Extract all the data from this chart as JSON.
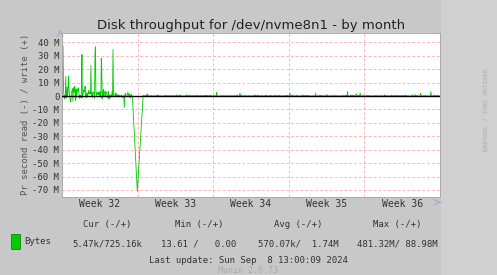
{
  "title": "Disk throughput for /dev/nvme8n1 - by month",
  "ylabel": "Pr second read (-) / write (+)",
  "bg_color": "#c8c8c8",
  "plot_bg_color": "#ffffff",
  "grid_color": "#ff9999",
  "line_color": "#00cc00",
  "zero_line_color": "#000000",
  "border_color": "#aaaaaa",
  "right_panel_color": "#d8d8d8",
  "ylim": [
    -75000000,
    47000000
  ],
  "yticks": [
    -70000000,
    -60000000,
    -50000000,
    -40000000,
    -30000000,
    -20000000,
    -10000000,
    0,
    10000000,
    20000000,
    30000000,
    40000000
  ],
  "ytick_labels": [
    "-70 M",
    "-60 M",
    "-50 M",
    "-40 M",
    "-30 M",
    "-20 M",
    "-10 M",
    "0",
    "10 M",
    "20 M",
    "30 M",
    "40 M"
  ],
  "week_labels": [
    "Week 32",
    "Week 33",
    "Week 34",
    "Week 35",
    "Week 36"
  ],
  "legend_label": "Bytes",
  "legend_color": "#00cc00",
  "cur_label": "Cur (-/+)",
  "cur_val": "5.47k/725.16k",
  "min_label": "Min (-/+)",
  "min_val": "13.61 /   0.00",
  "avg_label": "Avg (-/+)",
  "avg_val": "570.07k/  1.74M",
  "max_label": "Max (-/+)",
  "max_val": "481.32M/ 88.98M",
  "last_update": "Last update: Sun Sep  8 13:00:09 2024",
  "munin_version": "Munin 2.0.73",
  "rrdtool_label": "RRDTOOL / TOBI OETIKER",
  "title_color": "#222222",
  "text_color": "#333333",
  "axis_label_color": "#555555",
  "subtitle_color": "#aaaaaa",
  "arrow_color": "#aaaacc"
}
